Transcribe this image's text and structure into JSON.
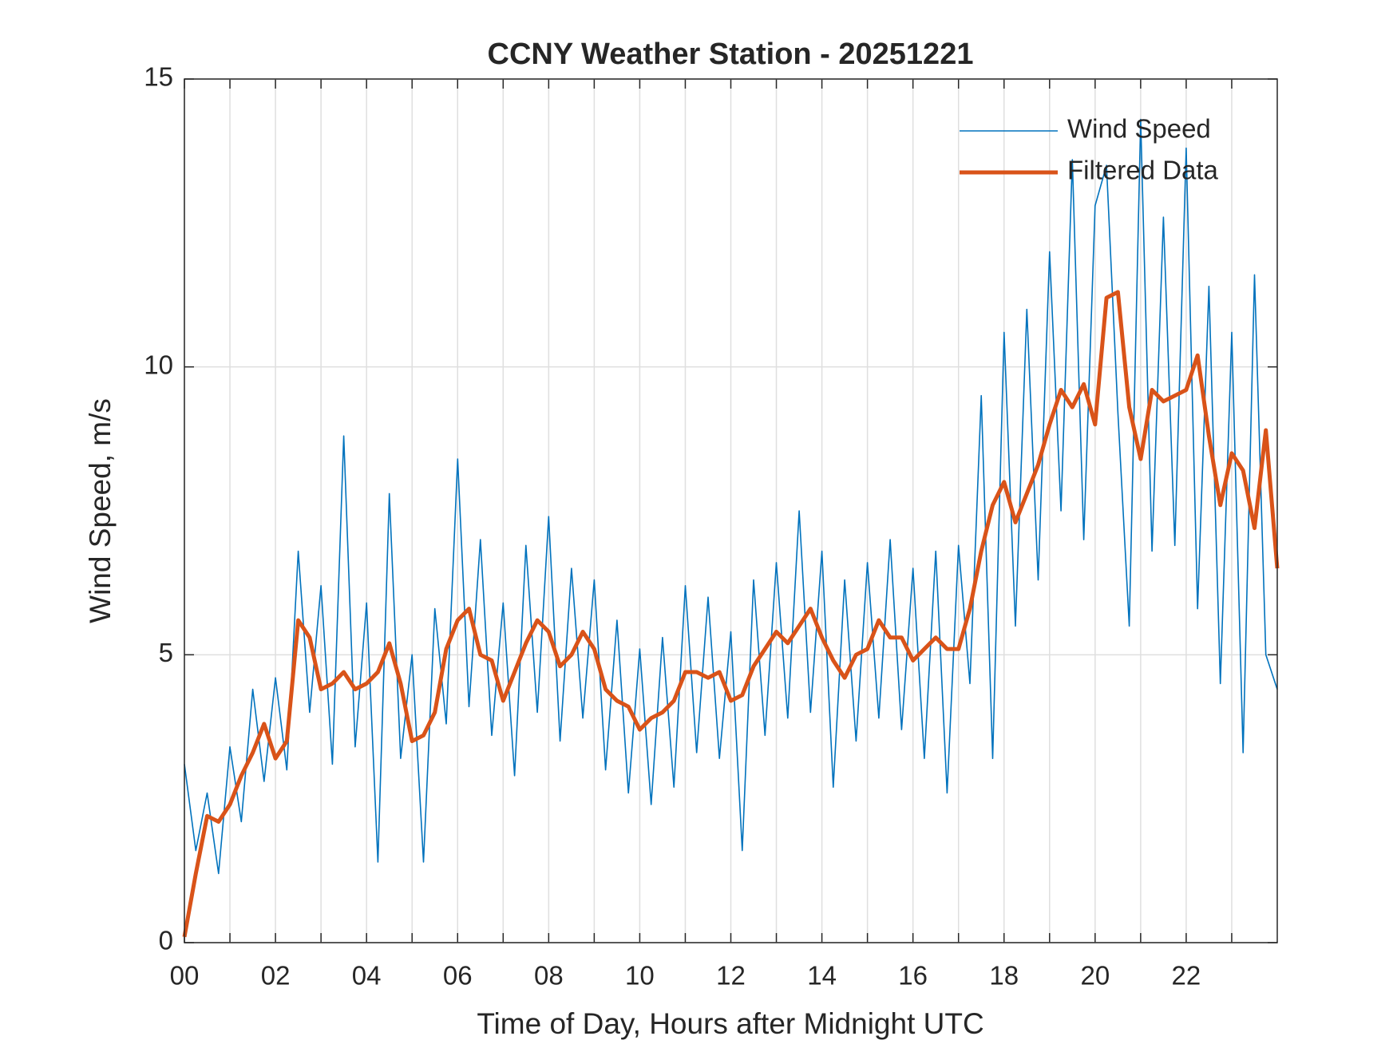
{
  "chart_data": {
    "type": "line",
    "title": "CCNY Weather Station - 20251221",
    "x_label": "Time of Day, Hours after Midnight UTC",
    "y_label": "Wind Speed, m/s",
    "x": [
      0,
      0.25,
      0.5,
      0.75,
      1,
      1.25,
      1.5,
      1.75,
      2,
      2.25,
      2.5,
      2.75,
      3,
      3.25,
      3.5,
      3.75,
      4,
      4.25,
      4.5,
      4.75,
      5,
      5.25,
      5.5,
      5.75,
      6,
      6.25,
      6.5,
      6.75,
      7,
      7.25,
      7.5,
      7.75,
      8,
      8.25,
      8.5,
      8.75,
      9,
      9.25,
      9.5,
      9.75,
      10,
      10.25,
      10.5,
      10.75,
      11,
      11.25,
      11.5,
      11.75,
      12,
      12.25,
      12.5,
      12.75,
      13,
      13.25,
      13.5,
      13.75,
      14,
      14.25,
      14.5,
      14.75,
      15,
      15.25,
      15.5,
      15.75,
      16,
      16.25,
      16.5,
      16.75,
      17,
      17.25,
      17.5,
      17.75,
      18,
      18.25,
      18.5,
      18.75,
      19,
      19.25,
      19.5,
      19.75,
      20,
      20.25,
      20.5,
      20.75,
      21,
      21.25,
      21.5,
      21.75,
      22,
      22.25,
      22.5,
      22.75,
      23,
      23.25,
      23.5,
      23.75,
      24
    ],
    "series": [
      {
        "name": "Wind Speed",
        "color": "#0072BD",
        "width": 1.6,
        "values": [
          3.1,
          1.6,
          2.6,
          1.2,
          3.4,
          2.1,
          4.4,
          2.8,
          4.6,
          3.0,
          6.8,
          4.0,
          6.2,
          3.1,
          8.8,
          3.4,
          5.9,
          1.4,
          7.8,
          3.2,
          5.0,
          1.4,
          5.8,
          3.8,
          8.4,
          4.1,
          7.0,
          3.6,
          5.9,
          2.9,
          6.9,
          4.0,
          7.4,
          3.5,
          6.5,
          3.9,
          6.3,
          3.0,
          5.6,
          2.6,
          5.1,
          2.4,
          5.3,
          2.7,
          6.2,
          3.3,
          6.0,
          3.2,
          5.4,
          1.6,
          6.3,
          3.6,
          6.6,
          3.9,
          7.5,
          4.0,
          6.8,
          2.7,
          6.3,
          3.5,
          6.6,
          3.9,
          7.0,
          3.7,
          6.5,
          3.2,
          6.8,
          2.6,
          6.9,
          4.5,
          9.5,
          3.2,
          10.6,
          5.5,
          11.0,
          6.3,
          12.0,
          7.5,
          13.6,
          7.0,
          12.8,
          13.5,
          9.2,
          5.5,
          14.3,
          6.8,
          12.6,
          6.9,
          13.8,
          5.8,
          11.4,
          4.5,
          10.6,
          3.3,
          11.6,
          5.0,
          4.4
        ]
      },
      {
        "name": "Filtered Data",
        "color": "#D95319",
        "width": 5,
        "values": [
          0.1,
          1.2,
          2.2,
          2.1,
          2.4,
          2.9,
          3.3,
          3.8,
          3.2,
          3.5,
          5.6,
          5.3,
          4.4,
          4.5,
          4.7,
          4.4,
          4.5,
          4.7,
          5.2,
          4.5,
          3.5,
          3.6,
          4.0,
          5.1,
          5.6,
          5.8,
          5.0,
          4.9,
          4.2,
          4.7,
          5.2,
          5.6,
          5.4,
          4.8,
          5.0,
          5.4,
          5.1,
          4.4,
          4.2,
          4.1,
          3.7,
          3.9,
          4.0,
          4.2,
          4.7,
          4.7,
          4.6,
          4.7,
          4.2,
          4.3,
          4.8,
          5.1,
          5.4,
          5.2,
          5.5,
          5.8,
          5.3,
          4.9,
          4.6,
          5.0,
          5.1,
          5.6,
          5.3,
          5.3,
          4.9,
          5.1,
          5.3,
          5.1,
          5.1,
          5.8,
          6.8,
          7.6,
          8.0,
          7.3,
          7.8,
          8.3,
          9.0,
          9.6,
          9.3,
          9.7,
          9.0,
          11.2,
          11.3,
          9.3,
          8.4,
          9.6,
          9.4,
          9.5,
          9.6,
          10.2,
          8.8,
          7.6,
          8.5,
          8.2,
          7.2,
          8.9,
          6.5
        ]
      }
    ],
    "xlim": [
      0,
      24
    ],
    "xticks": [
      {
        "value": 0,
        "label": "00"
      },
      {
        "value": 2,
        "label": "02"
      },
      {
        "value": 4,
        "label": "04"
      },
      {
        "value": 6,
        "label": "06"
      },
      {
        "value": 8,
        "label": "08"
      },
      {
        "value": 10,
        "label": "10"
      },
      {
        "value": 12,
        "label": "12"
      },
      {
        "value": 14,
        "label": "14"
      },
      {
        "value": 16,
        "label": "16"
      },
      {
        "value": 18,
        "label": "18"
      },
      {
        "value": 20,
        "label": "20"
      },
      {
        "value": 22,
        "label": "22"
      }
    ],
    "x_minor_ticks": [
      1,
      3,
      5,
      7,
      9,
      11,
      13,
      15,
      17,
      19,
      21,
      23
    ],
    "ylim": [
      0,
      15
    ],
    "yticks": [
      0,
      5,
      10,
      15
    ],
    "grid": true,
    "legend": "top-right"
  }
}
